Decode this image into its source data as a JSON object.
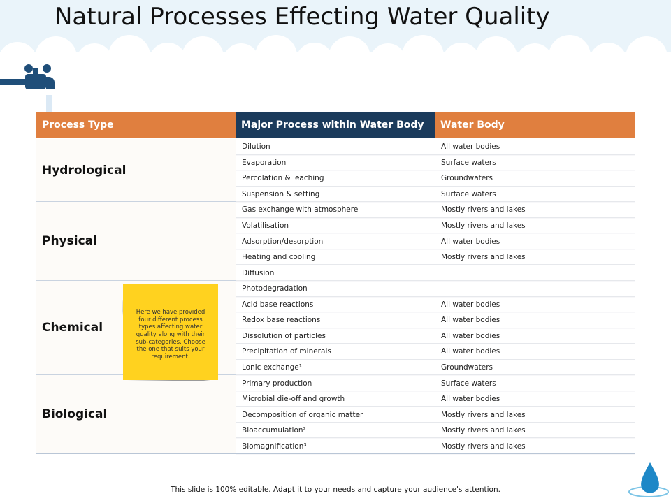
{
  "header": {
    "title": "Natural Processes Effecting Water Quality"
  },
  "table": {
    "columns": [
      "Process Type",
      "Major Process within Water Body",
      "Water Body"
    ],
    "groups": [
      {
        "name": "Hydrological",
        "rows": [
          {
            "process": "Dilution",
            "water": "All water bodies"
          },
          {
            "process": "Evaporation",
            "water": "Surface waters"
          },
          {
            "process": "Percolation & leaching",
            "water": "Groundwaters"
          },
          {
            "process": "Suspension & setting",
            "water": "Surface waters"
          }
        ]
      },
      {
        "name": "Physical",
        "rows": [
          {
            "process": "Gas exchange with atmosphere",
            "water": "Mostly rivers and lakes"
          },
          {
            "process": "Volatilisation",
            "water": "Mostly rivers and lakes"
          },
          {
            "process": "Adsorption/desorption",
            "water": "All water bodies"
          },
          {
            "process": "Heating and cooling",
            "water": "Mostly rivers and lakes"
          },
          {
            "process": "Diffusion"
          }
        ]
      },
      {
        "name": "Chemical",
        "rows": [
          {
            "process": "Photodegradation"
          },
          {
            "process": "Acid base reactions",
            "water": "All water bodies"
          },
          {
            "process": "Redox base reactions",
            "water": "All water bodies"
          },
          {
            "process": "Dissolution of particles",
            "water": "All water bodies"
          },
          {
            "process": "Precipitation of minerals",
            "water": "All water bodies"
          },
          {
            "process": "Lonic exchange¹",
            "water": "Groundwaters"
          }
        ]
      },
      {
        "name": "Biological",
        "rows": [
          {
            "process": "Primary production",
            "water": "Surface waters"
          },
          {
            "process": "Microbial die-off and growth",
            "water": "All water bodies"
          },
          {
            "process": "Decomposition of organic matter",
            "water": "Mostly rivers and lakes"
          },
          {
            "process": "Bioaccumulation²",
            "water": "Mostly rivers and lakes"
          },
          {
            "process": "Biomagnification³",
            "water": "Mostly rivers and lakes"
          }
        ]
      }
    ]
  },
  "note": "Here we have provided four different process types affecting water quality along with their sub-categories. Choose the one that suits your requirement.",
  "footer": "This slide is 100% editable. Adapt it to your needs and capture your audience's attention."
}
